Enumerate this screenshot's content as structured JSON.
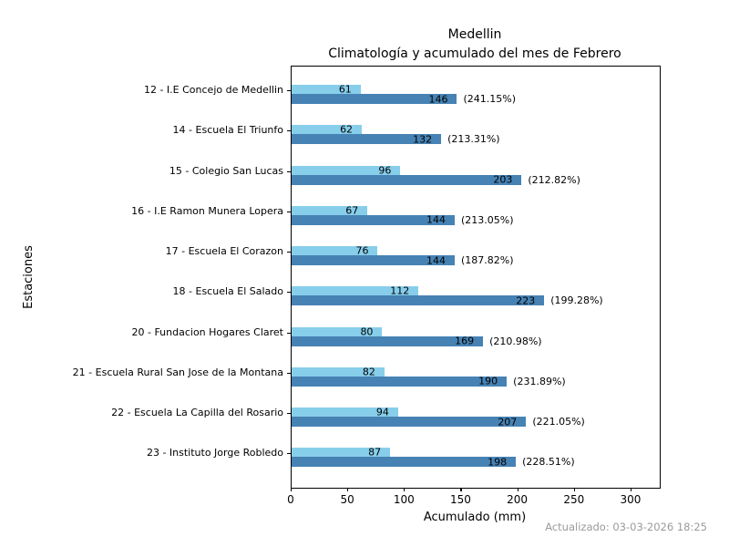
{
  "footer": {
    "updated_text": "Actualizado: 03-03-2026 18:25"
  },
  "chart_data": {
    "type": "bar",
    "orientation": "horizontal",
    "title_lines": [
      "Medellin",
      "Climatología y acumulado del mes de Febrero"
    ],
    "xlabel": "Acumulado (mm)",
    "ylabel": "Estaciones",
    "xlim": [
      0,
      325
    ],
    "xticks": [
      0,
      50,
      100,
      150,
      200,
      250,
      300
    ],
    "grid": false,
    "legend_position": "none",
    "categories": [
      "12 - I.E Concejo de Medellin",
      "14 - Escuela El Triunfo",
      "15 - Colegio San Lucas",
      "16 - I.E Ramon Munera Lopera",
      "17 - Escuela El Corazon",
      "18 - Escuela El Salado",
      "20 - Fundacion Hogares Claret",
      "21 - Escuela Rural San Jose de la Montana",
      "22 - Escuela La Capilla del Rosario",
      "23 - Instituto Jorge Robledo"
    ],
    "series": [
      {
        "name": "Climatología",
        "color": "#87CEEB",
        "values": [
          61,
          62,
          96,
          67,
          76,
          112,
          80,
          82,
          94,
          87
        ]
      },
      {
        "name": "Acumulado",
        "color": "#4682B4",
        "values": [
          146,
          132,
          203,
          144,
          144,
          223,
          169,
          190,
          207,
          198
        ],
        "percent_labels": [
          "(241.15%)",
          "(213.31%)",
          "(212.82%)",
          "(213.05%)",
          "(187.82%)",
          "(199.28%)",
          "(210.98%)",
          "(231.89%)",
          "(221.05%)",
          "(228.51%)"
        ]
      }
    ]
  }
}
